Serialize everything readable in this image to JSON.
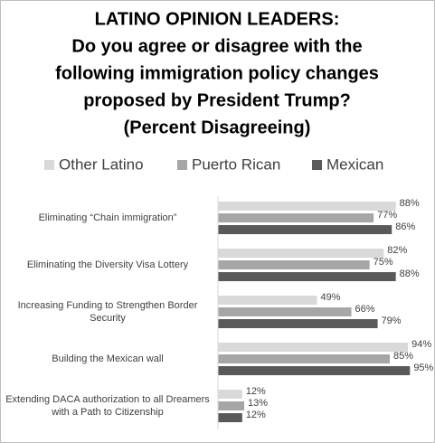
{
  "chart_data": {
    "type": "hbar",
    "title": [
      "LATINO OPINION LEADERS:",
      "Do you agree or disagree with the",
      "following immigration policy changes",
      "proposed by President Trump?",
      "(Percent Disagreeing)"
    ],
    "categories": [
      "Eliminating “Chain immigration”",
      "Eliminating the Diversity Visa Lottery",
      "Increasing Funding to Strengthen Border Security",
      "Building the Mexican wall",
      "Extending DACA authorization to all Dreamers with a Path to Citizenship"
    ],
    "series": [
      {
        "name": "Other Latino",
        "color": "#d9d9d9",
        "values": [
          88,
          82,
          49,
          94,
          12
        ],
        "value_labels": [
          "88%",
          "82%",
          "49%",
          "94%",
          "12%"
        ]
      },
      {
        "name": "Puerto Rican",
        "color": "#a6a6a6",
        "values": [
          77,
          75,
          66,
          85,
          13
        ],
        "value_labels": [
          "77%",
          "75%",
          "66%",
          "85%",
          "13%"
        ]
      },
      {
        "name": "Mexican",
        "color": "#595959",
        "values": [
          86,
          88,
          79,
          95,
          12
        ],
        "value_labels": [
          "86%",
          "88%",
          "79%",
          "95%",
          "12%"
        ]
      }
    ],
    "xlim": [
      0,
      100
    ]
  }
}
